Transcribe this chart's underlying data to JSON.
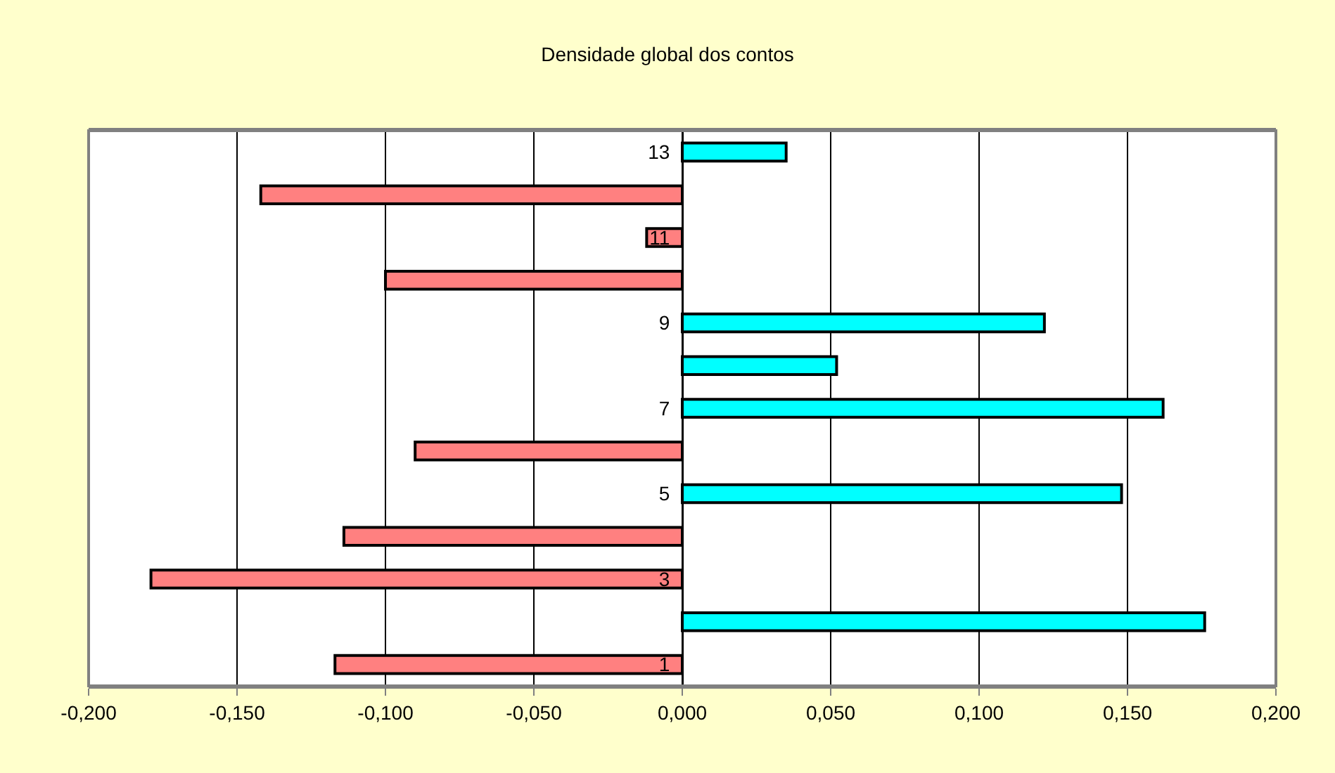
{
  "chart_data": {
    "type": "bar",
    "orientation": "horizontal",
    "title": "Densidade global dos contos",
    "categories": [
      "13",
      null,
      "11",
      null,
      "9",
      null,
      "7",
      null,
      "5",
      null,
      "3",
      null,
      "1"
    ],
    "values": [
      0.035,
      -0.142,
      -0.012,
      -0.1,
      0.122,
      0.052,
      0.162,
      -0.09,
      0.148,
      -0.114,
      -0.179,
      0.176,
      -0.117
    ],
    "colors": [
      "#00ffff",
      "#ff8080",
      "#ff8080",
      "#ff8080",
      "#00ffff",
      "#00ffff",
      "#00ffff",
      "#ff8080",
      "#00ffff",
      "#ff8080",
      "#ff8080",
      "#00ffff",
      "#ff8080"
    ],
    "xlim": [
      -0.2,
      0.2
    ],
    "xticks": [
      {
        "value": -0.2,
        "label": "-0,200"
      },
      {
        "value": -0.15,
        "label": "-0,150"
      },
      {
        "value": -0.1,
        "label": "-0,100"
      },
      {
        "value": -0.05,
        "label": "-0,050"
      },
      {
        "value": 0,
        "label": "0,000"
      },
      {
        "value": 0.05,
        "label": "0,050"
      },
      {
        "value": 0.1,
        "label": "0,100"
      },
      {
        "value": 0.15,
        "label": "0,150"
      },
      {
        "value": 0.2,
        "label": "0,200"
      }
    ],
    "grid": "x"
  }
}
